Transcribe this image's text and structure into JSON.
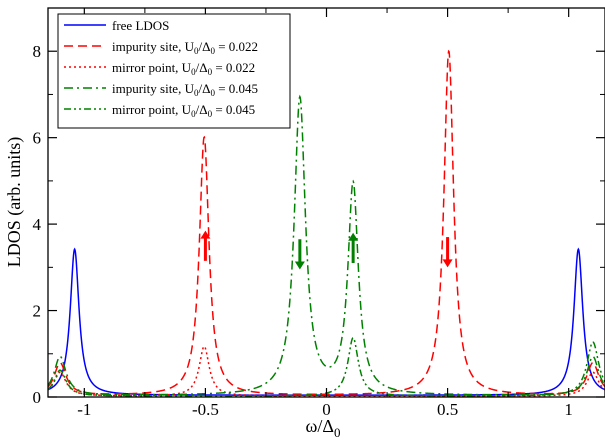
{
  "chart_data": {
    "type": "line",
    "xlabel": "ω/Δ",
    "xlabel_sub": "0",
    "ylabel": "LDOS (arb. units)",
    "xlim": [
      -1.15,
      1.15
    ],
    "ylim": [
      0,
      9
    ],
    "xticks": [
      -1,
      -0.5,
      0,
      0.5,
      1
    ],
    "xtick_labels": [
      "-1",
      "-0.5",
      "0",
      "0.5",
      "1"
    ],
    "yticks": [
      0,
      2,
      4,
      6,
      8
    ],
    "ytick_labels": [
      "0",
      "2",
      "4",
      "6",
      "8"
    ],
    "grid": false,
    "legend_position": "top-left",
    "series": [
      {
        "name": "free LDOS",
        "color": "#0000ff",
        "dash": "solid",
        "peaks": [
          {
            "x": -1.04,
            "h": 3.38,
            "w": 0.022
          },
          {
            "x": 1.04,
            "h": 3.38,
            "w": 0.022
          }
        ],
        "base": 0.04,
        "legend": {
          "pre": "free LDOS"
        }
      },
      {
        "name": "impurity site, U0/Δ0 = 0.022",
        "color": "#ff0000",
        "dash": "dash",
        "peaks": [
          {
            "x": -0.505,
            "h": 5.98,
            "w": 0.024
          },
          {
            "x": 0.505,
            "h": 7.97,
            "w": 0.024
          },
          {
            "x": -1.1,
            "h": 0.75,
            "w": 0.03
          },
          {
            "x": 1.1,
            "h": 0.75,
            "w": 0.03
          }
        ],
        "base": 0.03,
        "legend": {
          "pre": "impurity site, U",
          "sub1": "0",
          "mid": "/Δ",
          "sub2": "0",
          "post": " = 0.022"
        }
      },
      {
        "name": "mirror point, U0/Δ0 = 0.022",
        "color": "#ff0000",
        "dash": "dot",
        "peaks": [
          {
            "x": -0.505,
            "h": 1.15,
            "w": 0.025
          },
          {
            "x": -1.1,
            "h": 0.55,
            "w": 0.03
          },
          {
            "x": 1.1,
            "h": 0.55,
            "w": 0.03
          }
        ],
        "base": 0.02,
        "legend": {
          "pre": "mirror point, U",
          "sub1": "0",
          "mid": "/Δ",
          "sub2": "0",
          "post": " = 0.022"
        }
      },
      {
        "name": "impurity site, U0/Δ0 = 0.045",
        "color": "#008000",
        "dash": "dashdot",
        "peaks": [
          {
            "x": -0.11,
            "h": 6.85,
            "w": 0.028
          },
          {
            "x": 0.11,
            "h": 4.85,
            "w": 0.026
          },
          {
            "x": -1.1,
            "h": 0.9,
            "w": 0.03
          },
          {
            "x": 1.1,
            "h": 0.9,
            "w": 0.03
          }
        ],
        "base": 0.03,
        "legend": {
          "pre": "impurity site, U",
          "sub1": "0",
          "mid": "/Δ",
          "sub2": "0",
          "post": " = 0.045"
        }
      },
      {
        "name": "mirror point, U0/Δ0 = 0.045",
        "color": "#008000",
        "dash": "dashdotdot",
        "peaks": [
          {
            "x": 0.11,
            "h": 1.35,
            "w": 0.026
          },
          {
            "x": -1.1,
            "h": 0.6,
            "w": 0.03
          },
          {
            "x": 1.1,
            "h": 1.25,
            "w": 0.03
          }
        ],
        "base": 0.02,
        "legend": {
          "pre": "mirror point, U",
          "sub1": "0",
          "mid": "/Δ",
          "sub2": "0",
          "post": " = 0.045"
        }
      }
    ],
    "annotations": [
      {
        "type": "arrow",
        "direction": "up",
        "x": -0.5,
        "y_from": 3.15,
        "y_to": 3.85,
        "color": "#ff0000"
      },
      {
        "type": "arrow",
        "direction": "down",
        "x": 0.5,
        "y_from": 3.7,
        "y_to": 3.0,
        "color": "#ff0000"
      },
      {
        "type": "arrow",
        "direction": "down",
        "x": -0.11,
        "y_from": 3.65,
        "y_to": 2.95,
        "color": "#008000"
      },
      {
        "type": "arrow",
        "direction": "up",
        "x": 0.11,
        "y_from": 3.1,
        "y_to": 3.8,
        "color": "#008000"
      }
    ]
  }
}
